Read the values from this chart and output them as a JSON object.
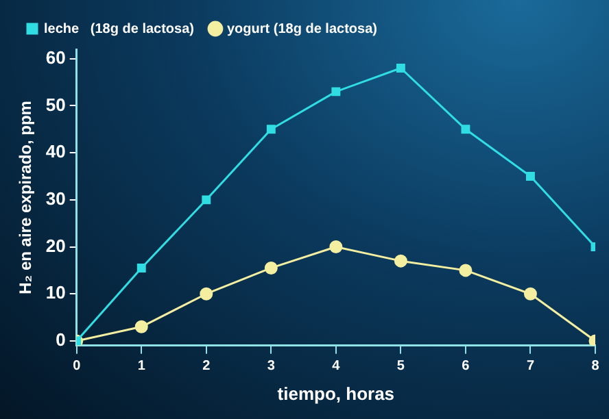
{
  "chart_data": {
    "type": "line",
    "xlabel": "tiempo, horas",
    "ylabel": "H₂ en aire expirado, ppm",
    "x": [
      0,
      1,
      2,
      3,
      4,
      5,
      6,
      7,
      8
    ],
    "series": [
      {
        "name": "leche   (18g de lactosa)",
        "color": "#2fdde3",
        "marker": "square",
        "values": [
          0,
          15.5,
          30,
          45,
          53,
          58,
          45,
          35,
          20
        ]
      },
      {
        "name": "yogurt (18g de lactosa)",
        "color": "#f3eea0",
        "marker": "circle",
        "values": [
          0,
          3,
          10,
          15.5,
          20,
          17,
          15,
          10,
          0
        ]
      }
    ],
    "xlim": [
      0,
      8
    ],
    "xticks": [
      0,
      1,
      2,
      3,
      4,
      5,
      6,
      7,
      8
    ],
    "ylim": [
      -1,
      62
    ],
    "yticks": [
      0,
      10,
      20,
      30,
      40,
      50,
      60
    ],
    "grid": false,
    "legend": "top left",
    "line_style": "solid"
  }
}
